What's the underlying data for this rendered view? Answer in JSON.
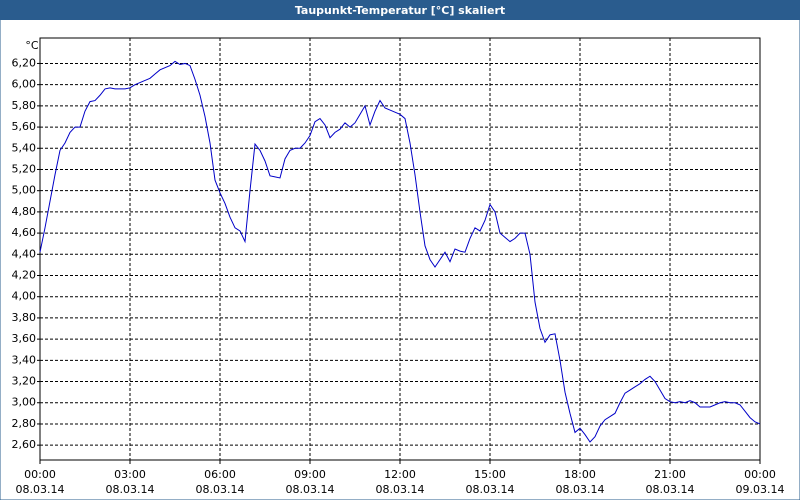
{
  "chart_data": {
    "type": "line",
    "title": "Taupunkt-Temperatur [°C] skaliert",
    "y_label": "°C",
    "color": "#0000c8",
    "grid": true,
    "ylim": [
      2.46,
      6.44
    ],
    "yticks": [
      {
        "value": 2.6,
        "label": "2,60"
      },
      {
        "value": 2.8,
        "label": "2,80"
      },
      {
        "value": 3.0,
        "label": "3,00"
      },
      {
        "value": 3.2,
        "label": "3,20"
      },
      {
        "value": 3.4,
        "label": "3,40"
      },
      {
        "value": 3.6,
        "label": "3,60"
      },
      {
        "value": 3.8,
        "label": "3,80"
      },
      {
        "value": 4.0,
        "label": "4,00"
      },
      {
        "value": 4.2,
        "label": "4,20"
      },
      {
        "value": 4.4,
        "label": "4,40"
      },
      {
        "value": 4.6,
        "label": "4,60"
      },
      {
        "value": 4.8,
        "label": "4,80"
      },
      {
        "value": 5.0,
        "label": "5,00"
      },
      {
        "value": 5.2,
        "label": "5,20"
      },
      {
        "value": 5.4,
        "label": "5,40"
      },
      {
        "value": 5.6,
        "label": "5,60"
      },
      {
        "value": 5.8,
        "label": "5,80"
      },
      {
        "value": 6.0,
        "label": "6,00"
      },
      {
        "value": 6.2,
        "label": "6,20"
      }
    ],
    "xlim": [
      0,
      1440
    ],
    "xticks": [
      {
        "value": 0,
        "label": "00:00",
        "date": "08.03.14"
      },
      {
        "value": 180,
        "label": "03:00",
        "date": "08.03.14"
      },
      {
        "value": 360,
        "label": "06:00",
        "date": "08.03.14"
      },
      {
        "value": 540,
        "label": "09:00",
        "date": "08.03.14"
      },
      {
        "value": 720,
        "label": "12:00",
        "date": "08.03.14"
      },
      {
        "value": 900,
        "label": "15:00",
        "date": "08.03.14"
      },
      {
        "value": 1080,
        "label": "18:00",
        "date": "08.03.14"
      },
      {
        "value": 1260,
        "label": "21:00",
        "date": "08.03.14"
      },
      {
        "value": 1440,
        "label": "00:00",
        "date": "09.03.14"
      }
    ],
    "x": [
      0,
      10,
      20,
      30,
      40,
      50,
      60,
      70,
      80,
      90,
      100,
      110,
      120,
      130,
      140,
      150,
      160,
      170,
      180,
      190,
      200,
      210,
      220,
      230,
      240,
      250,
      260,
      270,
      280,
      290,
      300,
      310,
      320,
      330,
      340,
      350,
      360,
      370,
      380,
      390,
      400,
      410,
      420,
      430,
      440,
      450,
      460,
      470,
      480,
      490,
      500,
      510,
      520,
      530,
      540,
      550,
      560,
      570,
      580,
      590,
      600,
      610,
      620,
      630,
      640,
      650,
      660,
      670,
      680,
      690,
      700,
      710,
      720,
      730,
      740,
      750,
      760,
      770,
      780,
      790,
      800,
      810,
      820,
      830,
      840,
      850,
      860,
      870,
      880,
      890,
      900,
      910,
      920,
      930,
      940,
      950,
      960,
      970,
      980,
      990,
      1000,
      1010,
      1020,
      1030,
      1040,
      1050,
      1060,
      1070,
      1080,
      1090,
      1100,
      1110,
      1120,
      1130,
      1140,
      1150,
      1160,
      1170,
      1180,
      1190,
      1200,
      1210,
      1220,
      1230,
      1240,
      1250,
      1260,
      1270,
      1280,
      1290,
      1300,
      1310,
      1320,
      1330,
      1340,
      1350,
      1360,
      1370,
      1380,
      1390,
      1400,
      1410,
      1420,
      1430,
      1440
    ],
    "values": [
      4.42,
      4.65,
      4.9,
      5.15,
      5.38,
      5.45,
      5.55,
      5.6,
      5.6,
      5.75,
      5.84,
      5.85,
      5.9,
      5.96,
      5.97,
      5.96,
      5.96,
      5.96,
      5.97,
      6.0,
      6.02,
      6.04,
      6.06,
      6.1,
      6.14,
      6.16,
      6.18,
      6.22,
      6.19,
      6.2,
      6.18,
      6.05,
      5.9,
      5.7,
      5.45,
      5.1,
      4.98,
      4.88,
      4.75,
      4.65,
      4.62,
      4.52,
      5.0,
      5.44,
      5.38,
      5.28,
      5.14,
      5.13,
      5.12,
      5.3,
      5.38,
      5.4,
      5.4,
      5.45,
      5.52,
      5.65,
      5.68,
      5.62,
      5.5,
      5.55,
      5.58,
      5.64,
      5.6,
      5.64,
      5.72,
      5.8,
      5.62,
      5.75,
      5.85,
      5.78,
      5.76,
      5.74,
      5.72,
      5.68,
      5.45,
      5.15,
      4.8,
      4.48,
      4.35,
      4.28,
      4.35,
      4.42,
      4.33,
      4.45,
      4.43,
      4.42,
      4.55,
      4.65,
      4.62,
      4.72,
      4.87,
      4.8,
      4.6,
      4.56,
      4.52,
      4.55,
      4.6,
      4.6,
      4.4,
      3.95,
      3.7,
      3.57,
      3.64,
      3.65,
      3.4,
      3.1,
      2.9,
      2.72,
      2.76,
      2.7,
      2.63,
      2.68,
      2.78,
      2.84,
      2.87,
      2.9,
      3.0,
      3.09,
      3.12,
      3.15,
      3.18,
      3.22,
      3.25,
      3.2,
      3.12,
      3.04,
      3.01,
      3.0,
      3.01,
      3.0,
      3.02,
      3.0,
      2.96,
      2.96,
      2.96,
      2.98,
      3.0,
      3.01,
      3.0,
      3.0,
      2.98,
      2.92,
      2.86,
      2.82,
      2.8
    ]
  }
}
